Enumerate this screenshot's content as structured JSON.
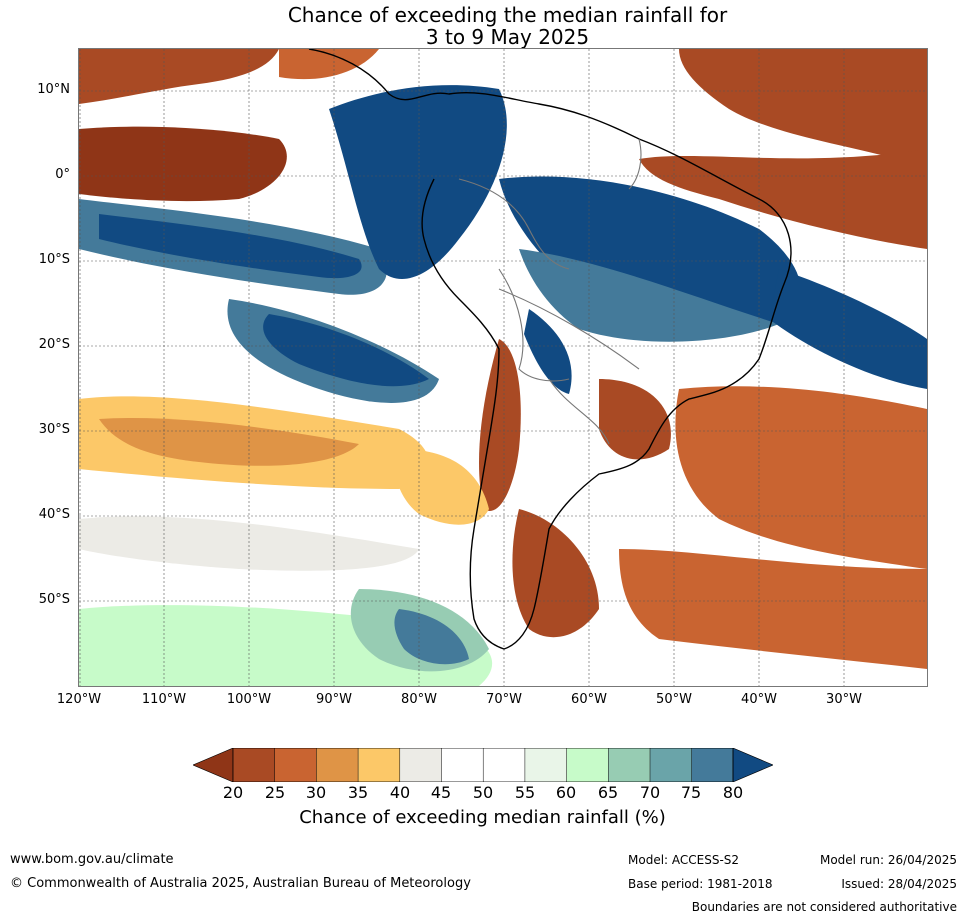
{
  "title": {
    "line1": "Chance of exceeding the median rainfall for",
    "line2": "3 to 9 May 2025"
  },
  "map": {
    "lat_ticks": [
      "10°N",
      "0°",
      "10°S",
      "20°S",
      "30°S",
      "40°S",
      "50°S"
    ],
    "lon_ticks": [
      "120°W",
      "110°W",
      "100°W",
      "90°W",
      "80°W",
      "70°W",
      "60°W",
      "50°W",
      "40°W",
      "30°W"
    ],
    "colors": {
      "c20": "#8f3517",
      "c25": "#a94a24",
      "c30": "#c96431",
      "c35": "#df9446",
      "c40": "#fcc868",
      "c45": "#ecebe6",
      "c55": "#ffffff",
      "c60": "#e9f5e8",
      "c65": "#c7fbc9",
      "c70": "#97ccb3",
      "c75": "#6aa4a9",
      "c80": "#447a9a",
      "c85": "#114a82"
    }
  },
  "colorbar": {
    "labels": [
      "20",
      "25",
      "30",
      "35",
      "40",
      "45",
      "50",
      "55",
      "60",
      "65",
      "70",
      "75",
      "80"
    ],
    "title": "Chance of exceeding median rainfall (%)"
  },
  "footer": {
    "website": "www.bom.gov.au/climate",
    "copyright": "© Commonwealth of Australia 2025, Australian Bureau of Meteorology",
    "model": "Model: ACCESS-S2",
    "base_period": "Base period: 1981-2018",
    "model_run": "Model run: 26/04/2025",
    "issued": "Issued: 28/04/2025",
    "disclaimer": "Boundaries are not considered authoritative"
  }
}
